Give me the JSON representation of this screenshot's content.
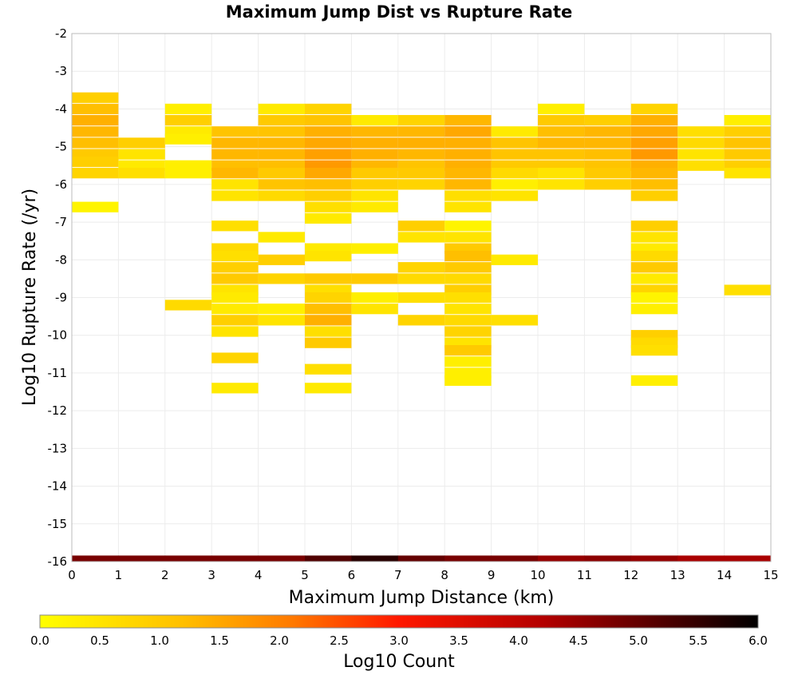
{
  "chart_data": {
    "type": "heatmap",
    "title": "Maximum Jump Dist vs Rupture Rate",
    "xlabel": "Maximum Jump Distance (km)",
    "ylabel": "Log10 Rupture Rate (/yr)",
    "xlim": [
      0,
      15
    ],
    "ylim": [
      -16,
      -2
    ],
    "x_ticks": [
      "0",
      "1",
      "2",
      "3",
      "4",
      "5",
      "6",
      "7",
      "8",
      "9",
      "10",
      "11",
      "12",
      "13",
      "14",
      "15"
    ],
    "y_ticks": [
      "-2",
      "-3",
      "-4",
      "-5",
      "-6",
      "-7",
      "-8",
      "-9",
      "-10",
      "-11",
      "-12",
      "-13",
      "-14",
      "-15",
      "-16"
    ],
    "grid": true,
    "colorbar": {
      "label": "Log10 Count",
      "range": [
        0,
        6
      ],
      "ticks": [
        "0.0",
        "0.5",
        "1.0",
        "1.5",
        "2.0",
        "2.5",
        "3.0",
        "3.5",
        "4.0",
        "4.5",
        "5.0",
        "5.5",
        "6.0"
      ],
      "colors": [
        "#ffff00",
        "#ffa000",
        "#ff1800",
        "#b40000",
        "#000000"
      ],
      "position": "bottom"
    },
    "bin_size": {
      "x": 1,
      "y": 0.28
    },
    "cells_description": "each column is [x_bin_start, [[log10_rate_center, log10_count], ...]]",
    "columns": [
      [
        0,
        [
          [
            -3.7,
            0.9
          ],
          [
            -4.0,
            1.2
          ],
          [
            -4.3,
            1.4
          ],
          [
            -4.6,
            1.3
          ],
          [
            -4.9,
            1.2
          ],
          [
            -5.2,
            1.0
          ],
          [
            -5.4,
            0.9
          ],
          [
            -5.7,
            0.8
          ],
          [
            -6.6,
            0.2
          ]
        ]
      ],
      [
        1,
        [
          [
            -4.9,
            0.9
          ],
          [
            -5.2,
            0.5
          ],
          [
            -5.5,
            0.4
          ],
          [
            -5.7,
            0.6
          ]
        ]
      ],
      [
        2,
        [
          [
            -4.0,
            0.3
          ],
          [
            -4.3,
            0.9
          ],
          [
            -4.6,
            0.4
          ],
          [
            -4.8,
            0.3
          ],
          [
            -5.5,
            0.3
          ],
          [
            -5.7,
            0.3
          ],
          [
            -9.2,
            0.7
          ]
        ]
      ],
      [
        3,
        [
          [
            -4.6,
            1.1
          ],
          [
            -4.9,
            1.3
          ],
          [
            -5.2,
            1.3
          ],
          [
            -5.5,
            1.2
          ],
          [
            -5.7,
            1.3
          ],
          [
            -6.0,
            0.5
          ],
          [
            -6.3,
            0.5
          ],
          [
            -7.1,
            0.6
          ],
          [
            -7.7,
            0.7
          ],
          [
            -7.9,
            0.6
          ],
          [
            -8.2,
            0.9
          ],
          [
            -8.5,
            1.0
          ],
          [
            -8.8,
            0.5
          ],
          [
            -9.0,
            0.4
          ],
          [
            -9.3,
            0.4
          ],
          [
            -9.6,
            0.9
          ],
          [
            -9.9,
            0.5
          ],
          [
            -10.6,
            0.8
          ],
          [
            -11.4,
            0.4
          ]
        ]
      ],
      [
        4,
        [
          [
            -4.0,
            0.4
          ],
          [
            -4.3,
            1.0
          ],
          [
            -4.6,
            1.1
          ],
          [
            -4.9,
            1.3
          ],
          [
            -5.2,
            1.3
          ],
          [
            -5.5,
            1.2
          ],
          [
            -5.7,
            1.0
          ],
          [
            -6.0,
            1.1
          ],
          [
            -6.3,
            0.7
          ],
          [
            -7.4,
            0.4
          ],
          [
            -8.0,
            0.9
          ],
          [
            -8.5,
            0.8
          ],
          [
            -9.3,
            0.3
          ],
          [
            -9.6,
            0.5
          ]
        ]
      ],
      [
        5,
        [
          [
            -4.0,
            0.8
          ],
          [
            -4.3,
            1.1
          ],
          [
            -4.6,
            1.4
          ],
          [
            -4.9,
            1.5
          ],
          [
            -5.2,
            1.6
          ],
          [
            -5.5,
            1.7
          ],
          [
            -5.7,
            1.5
          ],
          [
            -6.0,
            1.2
          ],
          [
            -6.3,
            0.9
          ],
          [
            -6.6,
            0.6
          ],
          [
            -6.9,
            0.4
          ],
          [
            -7.7,
            0.4
          ],
          [
            -7.9,
            0.5
          ],
          [
            -8.5,
            1.0
          ],
          [
            -8.8,
            0.6
          ],
          [
            -9.0,
            0.8
          ],
          [
            -9.3,
            1.2
          ],
          [
            -9.6,
            1.4
          ],
          [
            -9.9,
            0.6
          ],
          [
            -10.2,
            1.0
          ],
          [
            -10.9,
            0.6
          ],
          [
            -11.4,
            0.4
          ]
        ]
      ],
      [
        6,
        [
          [
            -4.3,
            0.4
          ],
          [
            -4.6,
            1.3
          ],
          [
            -4.9,
            1.4
          ],
          [
            -5.2,
            1.4
          ],
          [
            -5.5,
            1.3
          ],
          [
            -5.7,
            1.0
          ],
          [
            -6.0,
            0.9
          ],
          [
            -6.3,
            0.5
          ],
          [
            -6.6,
            0.4
          ],
          [
            -7.7,
            0.3
          ],
          [
            -8.5,
            1.0
          ],
          [
            -9.0,
            0.3
          ],
          [
            -9.3,
            0.5
          ]
        ]
      ],
      [
        7,
        [
          [
            -4.3,
            0.8
          ],
          [
            -4.6,
            1.3
          ],
          [
            -4.9,
            1.4
          ],
          [
            -5.2,
            1.3
          ],
          [
            -5.5,
            1.1
          ],
          [
            -5.7,
            1.0
          ],
          [
            -6.0,
            0.8
          ],
          [
            -7.1,
            0.9
          ],
          [
            -7.4,
            0.5
          ],
          [
            -8.2,
            0.8
          ],
          [
            -8.5,
            0.7
          ],
          [
            -9.0,
            0.6
          ],
          [
            -9.6,
            0.8
          ]
        ]
      ],
      [
        8,
        [
          [
            -4.3,
            1.3
          ],
          [
            -4.6,
            1.5
          ],
          [
            -4.9,
            1.4
          ],
          [
            -5.2,
            1.4
          ],
          [
            -5.5,
            1.4
          ],
          [
            -5.7,
            1.3
          ],
          [
            -6.0,
            1.3
          ],
          [
            -6.3,
            0.6
          ],
          [
            -6.6,
            0.5
          ],
          [
            -7.1,
            0.2
          ],
          [
            -7.4,
            0.5
          ],
          [
            -7.7,
            1.0
          ],
          [
            -7.9,
            1.2
          ],
          [
            -8.2,
            1.0
          ],
          [
            -8.5,
            0.7
          ],
          [
            -8.8,
            0.9
          ],
          [
            -9.0,
            0.6
          ],
          [
            -9.3,
            0.5
          ],
          [
            -9.6,
            0.7
          ],
          [
            -9.9,
            0.8
          ],
          [
            -10.2,
            0.5
          ],
          [
            -10.4,
            1.0
          ],
          [
            -10.7,
            0.3
          ],
          [
            -11.0,
            0.3
          ],
          [
            -11.2,
            0.3
          ]
        ]
      ],
      [
        9,
        [
          [
            -4.6,
            0.4
          ],
          [
            -4.9,
            1.1
          ],
          [
            -5.2,
            1.1
          ],
          [
            -5.5,
            1.0
          ],
          [
            -5.7,
            0.7
          ],
          [
            -6.0,
            0.3
          ],
          [
            -6.3,
            0.5
          ],
          [
            -8.0,
            0.4
          ],
          [
            -9.6,
            0.6
          ]
        ]
      ],
      [
        10,
        [
          [
            -4.0,
            0.3
          ],
          [
            -4.3,
            1.0
          ],
          [
            -4.6,
            1.2
          ],
          [
            -4.9,
            1.3
          ],
          [
            -5.2,
            1.1
          ],
          [
            -5.5,
            1.0
          ],
          [
            -5.7,
            0.5
          ],
          [
            -6.0,
            0.5
          ]
        ]
      ],
      [
        11,
        [
          [
            -4.3,
            0.9
          ],
          [
            -4.6,
            1.3
          ],
          [
            -4.9,
            1.3
          ],
          [
            -5.2,
            1.2
          ],
          [
            -5.5,
            1.1
          ],
          [
            -5.7,
            1.0
          ],
          [
            -6.0,
            0.9
          ]
        ]
      ],
      [
        12,
        [
          [
            -4.0,
            0.8
          ],
          [
            -4.3,
            1.4
          ],
          [
            -4.6,
            1.5
          ],
          [
            -4.9,
            1.6
          ],
          [
            -5.2,
            1.7
          ],
          [
            -5.5,
            1.4
          ],
          [
            -5.7,
            1.3
          ],
          [
            -6.0,
            1.2
          ],
          [
            -6.3,
            0.9
          ],
          [
            -7.1,
            0.9
          ],
          [
            -7.4,
            0.5
          ],
          [
            -7.7,
            0.4
          ],
          [
            -7.9,
            0.7
          ],
          [
            -8.2,
            1.0
          ],
          [
            -8.5,
            0.4
          ],
          [
            -8.8,
            0.8
          ],
          [
            -9.0,
            0.2
          ],
          [
            -9.3,
            0.3
          ],
          [
            -10.0,
            0.9
          ],
          [
            -10.2,
            0.7
          ],
          [
            -10.4,
            0.6
          ],
          [
            -11.2,
            0.3
          ]
        ]
      ],
      [
        13,
        [
          [
            -4.6,
            0.6
          ],
          [
            -4.9,
            0.7
          ],
          [
            -5.2,
            0.5
          ],
          [
            -5.5,
            0.6
          ]
        ]
      ],
      [
        14,
        [
          [
            -4.3,
            0.3
          ],
          [
            -4.6,
            0.9
          ],
          [
            -4.9,
            1.1
          ],
          [
            -5.2,
            1.0
          ],
          [
            -5.5,
            0.9
          ],
          [
            -5.7,
            0.5
          ],
          [
            -8.8,
            0.6
          ]
        ]
      ]
    ],
    "bottom_row": {
      "rate": -15.92,
      "values": [
        4.8,
        4.8,
        4.8,
        4.8,
        4.8,
        5.2,
        5.6,
        5.0,
        4.8,
        4.8,
        4.5,
        4.6,
        4.5,
        4.3,
        4.3
      ]
    }
  }
}
